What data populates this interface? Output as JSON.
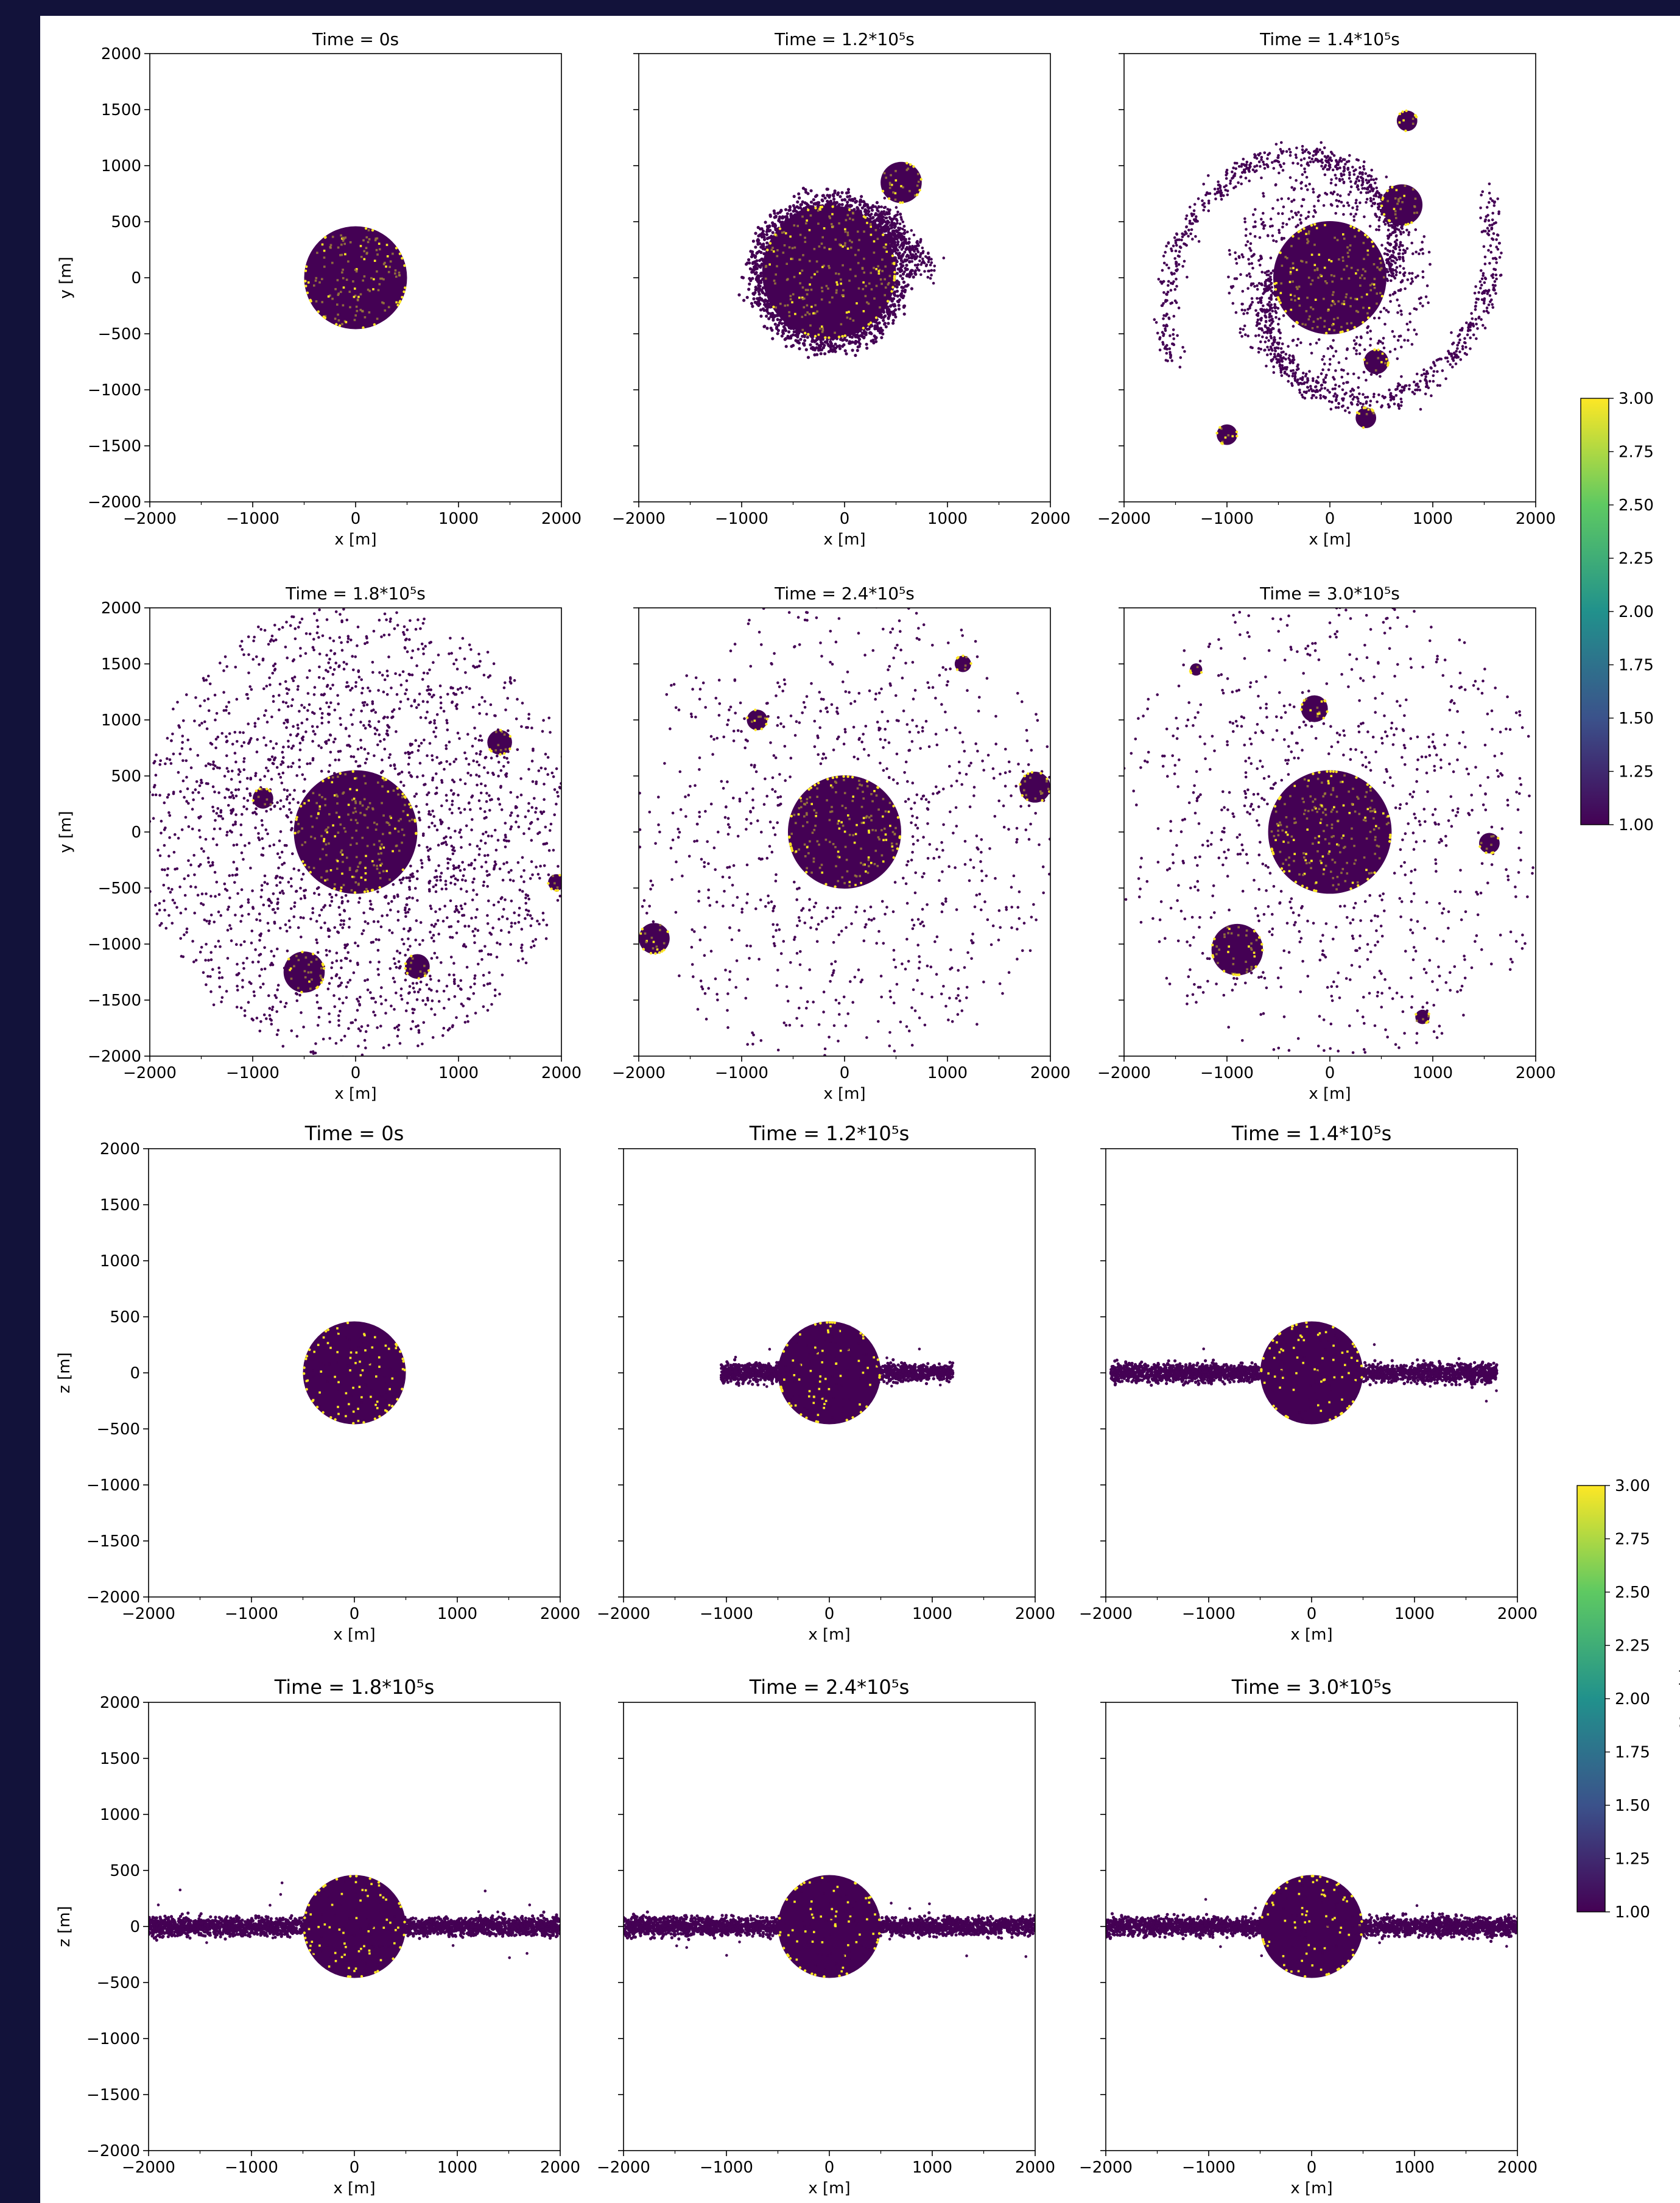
{
  "figure": {
    "background": "#ffffff",
    "frame_color": "#12123a",
    "colormap": {
      "name": "viridis",
      "stops": [
        "#440154",
        "#3b528b",
        "#21918c",
        "#5ec962",
        "#fde725"
      ],
      "label": "Material",
      "min": 1.0,
      "max": 3.0,
      "ticks": [
        "1.00",
        "1.25",
        "1.50",
        "1.75",
        "2.00",
        "2.25",
        "2.50",
        "2.75",
        "3.00"
      ]
    },
    "material_colors": {
      "1": "#440154",
      "2": "#9c7c3a",
      "3": "#fde725"
    },
    "xlabel": "x [m]"
  },
  "chart_data": [
    {
      "type": "scatter",
      "view": "xy",
      "title": "Time =  0s",
      "time_s": 0,
      "xlabel": "x [m]",
      "ylabel": "y [m]",
      "xlim": [
        -2000,
        2000
      ],
      "ylim": [
        -2000,
        2000
      ],
      "xticks": [
        "−2000",
        "−1000",
        "0",
        "1000",
        "2000"
      ],
      "yticks": [
        "−2000",
        "−1500",
        "−1000",
        "−500",
        "0",
        "500",
        "1000",
        "1500",
        "2000"
      ],
      "bodies": [
        {
          "x": 0,
          "y": 0,
          "r": 500,
          "material": "core"
        }
      ],
      "debris": "none"
    },
    {
      "type": "scatter",
      "view": "xy",
      "title": "Time =  1.2*10⁵s",
      "time_s": 120000,
      "xlabel": "x [m]",
      "ylabel": "",
      "xlim": [
        -2000,
        2000
      ],
      "ylim": [
        -2000,
        2000
      ],
      "xticks": [
        "−2000",
        "−1000",
        "0",
        "1000",
        "2000"
      ],
      "yticks": [],
      "bodies": [
        {
          "x": -150,
          "y": 50,
          "r": 650,
          "material": "core"
        },
        {
          "x": 550,
          "y": 850,
          "r": 200,
          "material": "core"
        }
      ],
      "debris": "disc"
    },
    {
      "type": "scatter",
      "view": "xy",
      "title": "Time =  1.4*10⁵s",
      "time_s": 140000,
      "xlabel": "x [m]",
      "ylabel": "",
      "xlim": [
        -2000,
        2000
      ],
      "ylim": [
        -2000,
        2000
      ],
      "xticks": [
        "−2000",
        "−1000",
        "0",
        "1000",
        "2000"
      ],
      "yticks": [],
      "bodies": [
        {
          "x": 0,
          "y": 0,
          "r": 550,
          "material": "core"
        },
        {
          "x": 700,
          "y": 650,
          "r": 200,
          "material": "core"
        },
        {
          "x": 750,
          "y": 1400,
          "r": 100,
          "material": "core"
        },
        {
          "x": -1000,
          "y": -1400,
          "r": 100,
          "material": "core"
        },
        {
          "x": 350,
          "y": -1250,
          "r": 100,
          "material": "core"
        },
        {
          "x": 450,
          "y": -750,
          "r": 120,
          "material": "core"
        }
      ],
      "debris": "spiral"
    },
    {
      "type": "scatter",
      "view": "xy",
      "title": "Time =  1.8*10⁵s",
      "time_s": 180000,
      "xlabel": "x [m]",
      "ylabel": "y [m]",
      "xlim": [
        -2000,
        2000
      ],
      "ylim": [
        -2000,
        2000
      ],
      "xticks": [
        "−2000",
        "−1000",
        "0",
        "1000",
        "2000"
      ],
      "yticks": [
        "−2000",
        "−1500",
        "−1000",
        "−500",
        "0",
        "500",
        "1000",
        "1500",
        "2000"
      ],
      "bodies": [
        {
          "x": 0,
          "y": 0,
          "r": 600,
          "material": "core"
        },
        {
          "x": -500,
          "y": -1250,
          "r": 200,
          "material": "core"
        },
        {
          "x": 1400,
          "y": 800,
          "r": 120,
          "material": "core"
        },
        {
          "x": 600,
          "y": -1200,
          "r": 120,
          "material": "core"
        },
        {
          "x": -900,
          "y": 300,
          "r": 100,
          "material": "core"
        },
        {
          "x": 1950,
          "y": -450,
          "r": 80,
          "material": "core"
        }
      ],
      "debris": "heavy"
    },
    {
      "type": "scatter",
      "view": "xy",
      "title": "Time =  2.4*10⁵s",
      "time_s": 240000,
      "xlabel": "x [m]",
      "ylabel": "",
      "xlim": [
        -2000,
        2000
      ],
      "ylim": [
        -2000,
        2000
      ],
      "xticks": [
        "−2000",
        "−1000",
        "0",
        "1000",
        "2000"
      ],
      "yticks": [],
      "bodies": [
        {
          "x": 0,
          "y": 0,
          "r": 550,
          "material": "core"
        },
        {
          "x": -1850,
          "y": -950,
          "r": 150,
          "material": "core"
        },
        {
          "x": 1850,
          "y": 400,
          "r": 150,
          "material": "core"
        },
        {
          "x": -850,
          "y": 1000,
          "r": 100,
          "material": "core"
        },
        {
          "x": 1150,
          "y": 1500,
          "r": 80,
          "material": "core"
        }
      ],
      "debris": "sparse"
    },
    {
      "type": "scatter",
      "view": "xy",
      "title": "Time =  3.0*10⁵s",
      "time_s": 300000,
      "xlabel": "x [m]",
      "ylabel": "",
      "xlim": [
        -2000,
        2000
      ],
      "ylim": [
        -2000,
        2000
      ],
      "xticks": [
        "−2000",
        "−1000",
        "0",
        "1000",
        "2000"
      ],
      "yticks": [],
      "bodies": [
        {
          "x": 0,
          "y": 0,
          "r": 600,
          "material": "core"
        },
        {
          "x": -900,
          "y": -1050,
          "r": 250,
          "material": "core"
        },
        {
          "x": -150,
          "y": 1100,
          "r": 130,
          "material": "core"
        },
        {
          "x": 1550,
          "y": -100,
          "r": 100,
          "material": "core"
        },
        {
          "x": -1300,
          "y": 1450,
          "r": 60,
          "material": "core"
        },
        {
          "x": 900,
          "y": -1650,
          "r": 70,
          "material": "core"
        }
      ],
      "debris": "sparse"
    },
    {
      "type": "scatter",
      "view": "xz",
      "title": "Time =  0s",
      "time_s": 0,
      "xlabel": "x [m]",
      "ylabel": "z [m]",
      "xlim": [
        -2000,
        2000
      ],
      "ylim": [
        -2000,
        2000
      ],
      "xticks": [
        "−2000",
        "−1000",
        "0",
        "1000",
        "2000"
      ],
      "yticks": [
        "−2000",
        "−1500",
        "−1000",
        "−500",
        "0",
        "500",
        "1000",
        "1500",
        "2000"
      ],
      "bodies": [
        {
          "x": 0,
          "y": 0,
          "r": 500,
          "material": "core"
        }
      ],
      "disc_extent": [
        0,
        0
      ]
    },
    {
      "type": "scatter",
      "view": "xz",
      "title": "Time =  1.2*10⁵s",
      "time_s": 120000,
      "xlabel": "x [m]",
      "ylabel": "",
      "xlim": [
        -2000,
        2000
      ],
      "ylim": [
        -2000,
        2000
      ],
      "xticks": [
        "−2000",
        "−1000",
        "0",
        "1000",
        "2000"
      ],
      "yticks": [],
      "bodies": [
        {
          "x": 0,
          "y": 0,
          "r": 500,
          "material": "core"
        }
      ],
      "disc_extent": [
        -1050,
        1200
      ]
    },
    {
      "type": "scatter",
      "view": "xz",
      "title": "Time =  1.4*10⁵s",
      "time_s": 140000,
      "xlabel": "x [m]",
      "ylabel": "",
      "xlim": [
        -2000,
        2000
      ],
      "ylim": [
        -2000,
        2000
      ],
      "xticks": [
        "−2000",
        "−1000",
        "0",
        "1000",
        "2000"
      ],
      "yticks": [],
      "bodies": [
        {
          "x": 0,
          "y": 0,
          "r": 500,
          "material": "core"
        }
      ],
      "disc_extent": [
        -1950,
        1800
      ]
    },
    {
      "type": "scatter",
      "view": "xz",
      "title": "Time =  1.8*10⁵s",
      "time_s": 180000,
      "xlabel": "x [m]",
      "ylabel": "z [m]",
      "xlim": [
        -2000,
        2000
      ],
      "ylim": [
        -2000,
        2000
      ],
      "xticks": [
        "−2000",
        "−1000",
        "0",
        "1000",
        "2000"
      ],
      "yticks": [
        "−2000",
        "−1500",
        "−1000",
        "−500",
        "0",
        "500",
        "1000",
        "1500",
        "2000"
      ],
      "bodies": [
        {
          "x": 0,
          "y": 0,
          "r": 500,
          "material": "core"
        }
      ],
      "disc_extent": [
        -2000,
        2000
      ]
    },
    {
      "type": "scatter",
      "view": "xz",
      "title": "Time =  2.4*10⁵s",
      "time_s": 240000,
      "xlabel": "x [m]",
      "ylabel": "",
      "xlim": [
        -2000,
        2000
      ],
      "ylim": [
        -2000,
        2000
      ],
      "xticks": [
        "−2000",
        "−1000",
        "0",
        "1000",
        "2000"
      ],
      "yticks": [],
      "bodies": [
        {
          "x": 0,
          "y": 0,
          "r": 500,
          "material": "core"
        }
      ],
      "disc_extent": [
        -2000,
        2000
      ]
    },
    {
      "type": "scatter",
      "view": "xz",
      "title": "Time =  3.0*10⁵s",
      "time_s": 300000,
      "xlabel": "x [m]",
      "ylabel": "",
      "xlim": [
        -2000,
        2000
      ],
      "ylim": [
        -2000,
        2000
      ],
      "xticks": [
        "−2000",
        "−1000",
        "0",
        "1000",
        "2000"
      ],
      "yticks": [],
      "bodies": [
        {
          "x": 0,
          "y": 0,
          "r": 500,
          "material": "core"
        }
      ],
      "disc_extent": [
        -2000,
        2000
      ]
    }
  ]
}
